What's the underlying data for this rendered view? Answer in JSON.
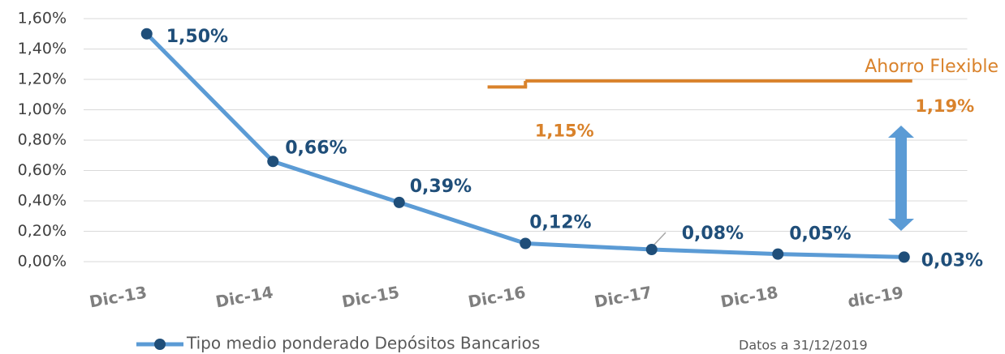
{
  "chart_data": {
    "type": "line",
    "categories": [
      "Dic-13",
      "Dic-14",
      "Dic-15",
      "Dic-16",
      "Dic-17",
      "Dic-18",
      "dic-19"
    ],
    "series": [
      {
        "name": "Tipo medio ponderado Depósitos Bancarios",
        "color": "#5b9bd5",
        "marker_color": "#1f4e79",
        "values": [
          1.5,
          0.66,
          0.39,
          0.12,
          0.08,
          0.05,
          0.03
        ],
        "value_labels": [
          "1,50%",
          "0,66%",
          "0,39%",
          "0,12%",
          "0,08%",
          "0,05%",
          "0,03%"
        ]
      },
      {
        "name": "Ahorro Flexible",
        "color": "#d9822b",
        "style": "step",
        "values": [
          null,
          null,
          null,
          1.15,
          null,
          null,
          1.19
        ],
        "value_labels": [
          null,
          null,
          null,
          "1,15%",
          null,
          null,
          "1,19%"
        ]
      }
    ],
    "ylim": [
      0,
      1.6
    ],
    "yticks": [
      {
        "value": 0,
        "label": "0,00%"
      },
      {
        "value": 0.2,
        "label": "0,20%"
      },
      {
        "value": 0.4,
        "label": "0,40%"
      },
      {
        "value": 0.6,
        "label": "0,60%"
      },
      {
        "value": 0.8,
        "label": "0,80%"
      },
      {
        "value": 1,
        "label": "1,00%"
      },
      {
        "value": 1.2,
        "label": "1,20%"
      },
      {
        "value": 1.4,
        "label": "1,40%"
      },
      {
        "value": 1.6,
        "label": "1,60%"
      }
    ],
    "grid": true,
    "footnote": "Datos a 31/12/2019"
  }
}
